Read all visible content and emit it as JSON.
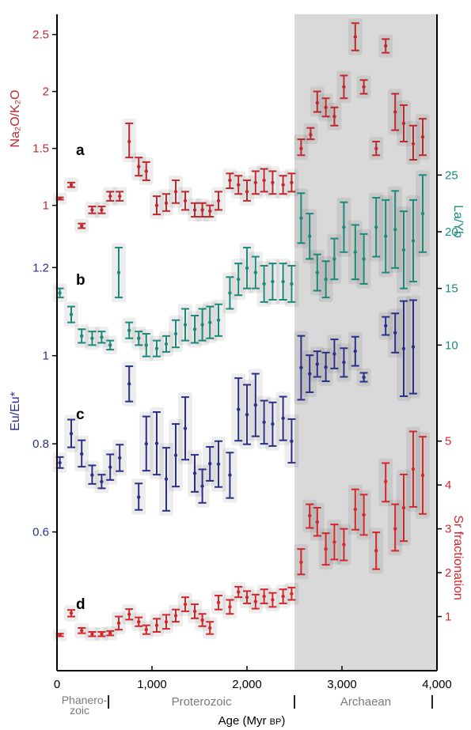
{
  "colors": {
    "na_k": "#c0282d",
    "la_yb": "#1b8a7a",
    "eu": "#2b2f8a",
    "sr": "#d6262b",
    "archaean_shade": "#d9d9d9",
    "eon_label": "#7a7a7a",
    "axis": "#000000"
  },
  "chart_data": [
    {
      "panel": "a",
      "type": "scatter",
      "series_name": "Na2O/K2O",
      "axis_label": "Na₂O/K₂O",
      "axis_side": "left",
      "ticks": [
        1,
        1.5,
        2,
        2.5
      ],
      "ylim": [
        0.56,
        2.56
      ],
      "points": [
        {
          "x": 30,
          "y": 1.06,
          "lo": 1.05,
          "hi": 1.07
        },
        {
          "x": 150,
          "y": 1.18,
          "lo": 1.16,
          "hi": 1.2
        },
        {
          "x": 260,
          "y": 0.82,
          "lo": 0.8,
          "hi": 0.84
        },
        {
          "x": 370,
          "y": 0.96,
          "lo": 0.93,
          "hi": 0.99
        },
        {
          "x": 470,
          "y": 0.96,
          "lo": 0.93,
          "hi": 0.99
        },
        {
          "x": 560,
          "y": 1.08,
          "lo": 1.04,
          "hi": 1.12
        },
        {
          "x": 660,
          "y": 1.08,
          "lo": 1.04,
          "hi": 1.12
        },
        {
          "x": 760,
          "y": 1.56,
          "lo": 1.42,
          "hi": 1.72
        },
        {
          "x": 860,
          "y": 1.34,
          "lo": 1.26,
          "hi": 1.42
        },
        {
          "x": 940,
          "y": 1.3,
          "lo": 1.22,
          "hi": 1.38
        },
        {
          "x": 1050,
          "y": 1.0,
          "lo": 0.92,
          "hi": 1.08
        },
        {
          "x": 1150,
          "y": 1.02,
          "lo": 0.95,
          "hi": 1.1
        },
        {
          "x": 1250,
          "y": 1.12,
          "lo": 1.02,
          "hi": 1.22
        },
        {
          "x": 1350,
          "y": 1.04,
          "lo": 0.96,
          "hi": 1.12
        },
        {
          "x": 1450,
          "y": 0.96,
          "lo": 0.9,
          "hi": 1.02
        },
        {
          "x": 1530,
          "y": 0.96,
          "lo": 0.9,
          "hi": 1.02
        },
        {
          "x": 1610,
          "y": 0.95,
          "lo": 0.9,
          "hi": 1.0
        },
        {
          "x": 1700,
          "y": 1.04,
          "lo": 0.96,
          "hi": 1.12
        },
        {
          "x": 1820,
          "y": 1.22,
          "lo": 1.15,
          "hi": 1.28
        },
        {
          "x": 1910,
          "y": 1.18,
          "lo": 1.1,
          "hi": 1.26
        },
        {
          "x": 2000,
          "y": 1.12,
          "lo": 1.04,
          "hi": 1.22
        },
        {
          "x": 2090,
          "y": 1.2,
          "lo": 1.1,
          "hi": 1.3
        },
        {
          "x": 2180,
          "y": 1.22,
          "lo": 1.12,
          "hi": 1.32
        },
        {
          "x": 2270,
          "y": 1.2,
          "lo": 1.1,
          "hi": 1.3
        },
        {
          "x": 2380,
          "y": 1.18,
          "lo": 1.1,
          "hi": 1.26
        },
        {
          "x": 2470,
          "y": 1.2,
          "lo": 1.12,
          "hi": 1.28
        },
        {
          "x": 2570,
          "y": 1.5,
          "lo": 1.44,
          "hi": 1.58
        },
        {
          "x": 2670,
          "y": 1.62,
          "lo": 1.58,
          "hi": 1.68
        },
        {
          "x": 2740,
          "y": 1.9,
          "lo": 1.82,
          "hi": 2.0
        },
        {
          "x": 2830,
          "y": 1.86,
          "lo": 1.78,
          "hi": 1.94
        },
        {
          "x": 2920,
          "y": 1.78,
          "lo": 1.7,
          "hi": 1.86
        },
        {
          "x": 3020,
          "y": 2.04,
          "lo": 1.94,
          "hi": 2.14
        },
        {
          "x": 3140,
          "y": 2.48,
          "lo": 2.36,
          "hi": 2.6
        },
        {
          "x": 3230,
          "y": 2.04,
          "lo": 1.98,
          "hi": 2.1
        },
        {
          "x": 3360,
          "y": 1.5,
          "lo": 1.44,
          "hi": 1.56
        },
        {
          "x": 3460,
          "y": 2.4,
          "lo": 2.34,
          "hi": 2.46
        },
        {
          "x": 3560,
          "y": 1.82,
          "lo": 1.66,
          "hi": 1.98
        },
        {
          "x": 3650,
          "y": 1.72,
          "lo": 1.56,
          "hi": 1.88
        },
        {
          "x": 3750,
          "y": 1.54,
          "lo": 1.4,
          "hi": 1.7
        },
        {
          "x": 3850,
          "y": 1.6,
          "lo": 1.44,
          "hi": 1.76
        }
      ]
    },
    {
      "panel": "b",
      "type": "scatter",
      "series_name": "La/Yb",
      "axis_label": "La/Yb",
      "axis_side": "right",
      "ticks": [
        10,
        15,
        20,
        25
      ],
      "ylim": [
        8,
        26
      ],
      "points": [
        {
          "x": 30,
          "y": 14.6,
          "lo": 14.2,
          "hi": 15.0
        },
        {
          "x": 150,
          "y": 12.7,
          "lo": 12.0,
          "hi": 13.4
        },
        {
          "x": 260,
          "y": 10.8,
          "lo": 10.2,
          "hi": 11.4
        },
        {
          "x": 370,
          "y": 10.6,
          "lo": 10.0,
          "hi": 11.2
        },
        {
          "x": 470,
          "y": 10.7,
          "lo": 10.2,
          "hi": 11.2
        },
        {
          "x": 560,
          "y": 10.0,
          "lo": 9.6,
          "hi": 10.4
        },
        {
          "x": 650,
          "y": 16.4,
          "lo": 14.2,
          "hi": 18.6
        },
        {
          "x": 760,
          "y": 11.3,
          "lo": 10.6,
          "hi": 12.0
        },
        {
          "x": 860,
          "y": 10.6,
          "lo": 10.0,
          "hi": 11.2
        },
        {
          "x": 940,
          "y": 10.0,
          "lo": 9.0,
          "hi": 11.0
        },
        {
          "x": 1050,
          "y": 9.7,
          "lo": 9.0,
          "hi": 10.4
        },
        {
          "x": 1150,
          "y": 10.1,
          "lo": 9.4,
          "hi": 10.8
        },
        {
          "x": 1250,
          "y": 11.0,
          "lo": 9.8,
          "hi": 12.2
        },
        {
          "x": 1350,
          "y": 11.8,
          "lo": 10.4,
          "hi": 13.2
        },
        {
          "x": 1450,
          "y": 11.4,
          "lo": 10.2,
          "hi": 12.6
        },
        {
          "x": 1530,
          "y": 11.8,
          "lo": 10.4,
          "hi": 13.2
        },
        {
          "x": 1610,
          "y": 12.0,
          "lo": 10.6,
          "hi": 13.4
        },
        {
          "x": 1700,
          "y": 12.2,
          "lo": 10.8,
          "hi": 13.6
        },
        {
          "x": 1820,
          "y": 14.6,
          "lo": 13.2,
          "hi": 16.0
        },
        {
          "x": 1910,
          "y": 15.8,
          "lo": 14.4,
          "hi": 17.2
        },
        {
          "x": 2000,
          "y": 16.8,
          "lo": 15.0,
          "hi": 18.6
        },
        {
          "x": 2090,
          "y": 16.4,
          "lo": 15.0,
          "hi": 17.8
        },
        {
          "x": 2180,
          "y": 15.4,
          "lo": 13.8,
          "hi": 17.0
        },
        {
          "x": 2270,
          "y": 15.6,
          "lo": 14.0,
          "hi": 17.2
        },
        {
          "x": 2380,
          "y": 15.6,
          "lo": 14.0,
          "hi": 17.2
        },
        {
          "x": 2470,
          "y": 15.4,
          "lo": 13.8,
          "hi": 17.0
        },
        {
          "x": 2570,
          "y": 21.2,
          "lo": 19.0,
          "hi": 23.4
        },
        {
          "x": 2660,
          "y": 19.6,
          "lo": 17.6,
          "hi": 21.6
        },
        {
          "x": 2740,
          "y": 16.4,
          "lo": 14.8,
          "hi": 18.0
        },
        {
          "x": 2830,
          "y": 15.8,
          "lo": 14.2,
          "hi": 17.4
        },
        {
          "x": 2920,
          "y": 17.6,
          "lo": 15.8,
          "hi": 19.4
        },
        {
          "x": 3020,
          "y": 20.4,
          "lo": 18.2,
          "hi": 22.6
        },
        {
          "x": 3140,
          "y": 18.2,
          "lo": 15.8,
          "hi": 20.6
        },
        {
          "x": 3230,
          "y": 17.6,
          "lo": 15.4,
          "hi": 19.8
        },
        {
          "x": 3360,
          "y": 20.4,
          "lo": 17.8,
          "hi": 23.0
        },
        {
          "x": 3460,
          "y": 19.6,
          "lo": 16.4,
          "hi": 22.8
        },
        {
          "x": 3560,
          "y": 20.2,
          "lo": 16.8,
          "hi": 23.6
        },
        {
          "x": 3650,
          "y": 18.4,
          "lo": 15.0,
          "hi": 21.8
        },
        {
          "x": 3750,
          "y": 19.2,
          "lo": 15.6,
          "hi": 22.8
        },
        {
          "x": 3850,
          "y": 21.6,
          "lo": 18.2,
          "hi": 25.0
        }
      ]
    },
    {
      "panel": "c",
      "type": "scatter",
      "series_name": "Eu/Eu*",
      "axis_label": "Eu/Eu*",
      "axis_side": "left",
      "ticks": [
        0.6,
        0.8,
        1,
        1.2
      ],
      "ylim": [
        0.54,
        1.24
      ],
      "points": [
        {
          "x": 30,
          "y": 0.757,
          "lo": 0.745,
          "hi": 0.77
        },
        {
          "x": 150,
          "y": 0.823,
          "lo": 0.792,
          "hi": 0.855
        },
        {
          "x": 260,
          "y": 0.777,
          "lo": 0.748,
          "hi": 0.808
        },
        {
          "x": 370,
          "y": 0.729,
          "lo": 0.709,
          "hi": 0.751
        },
        {
          "x": 470,
          "y": 0.714,
          "lo": 0.699,
          "hi": 0.73
        },
        {
          "x": 560,
          "y": 0.747,
          "lo": 0.718,
          "hi": 0.776
        },
        {
          "x": 660,
          "y": 0.768,
          "lo": 0.738,
          "hi": 0.798
        },
        {
          "x": 760,
          "y": 0.936,
          "lo": 0.896,
          "hi": 0.976
        },
        {
          "x": 860,
          "y": 0.679,
          "lo": 0.65,
          "hi": 0.71
        },
        {
          "x": 940,
          "y": 0.8,
          "lo": 0.739,
          "hi": 0.862
        },
        {
          "x": 1050,
          "y": 0.801,
          "lo": 0.73,
          "hi": 0.872
        },
        {
          "x": 1150,
          "y": 0.72,
          "lo": 0.648,
          "hi": 0.791
        },
        {
          "x": 1250,
          "y": 0.774,
          "lo": 0.703,
          "hi": 0.845
        },
        {
          "x": 1350,
          "y": 0.835,
          "lo": 0.764,
          "hi": 0.906
        },
        {
          "x": 1450,
          "y": 0.733,
          "lo": 0.691,
          "hi": 0.775
        },
        {
          "x": 1530,
          "y": 0.704,
          "lo": 0.666,
          "hi": 0.742
        },
        {
          "x": 1610,
          "y": 0.755,
          "lo": 0.716,
          "hi": 0.793
        },
        {
          "x": 1700,
          "y": 0.754,
          "lo": 0.702,
          "hi": 0.806
        },
        {
          "x": 1820,
          "y": 0.729,
          "lo": 0.677,
          "hi": 0.78
        },
        {
          "x": 1910,
          "y": 0.878,
          "lo": 0.807,
          "hi": 0.949
        },
        {
          "x": 2000,
          "y": 0.866,
          "lo": 0.799,
          "hi": 0.934
        },
        {
          "x": 2090,
          "y": 0.888,
          "lo": 0.817,
          "hi": 0.959
        },
        {
          "x": 2180,
          "y": 0.849,
          "lo": 0.8,
          "hi": 0.898
        },
        {
          "x": 2270,
          "y": 0.845,
          "lo": 0.795,
          "hi": 0.894
        },
        {
          "x": 2380,
          "y": 0.858,
          "lo": 0.808,
          "hi": 0.907
        },
        {
          "x": 2470,
          "y": 0.806,
          "lo": 0.757,
          "hi": 0.856
        },
        {
          "x": 2570,
          "y": 0.973,
          "lo": 0.9,
          "hi": 1.045
        },
        {
          "x": 2660,
          "y": 0.959,
          "lo": 0.917,
          "hi": 1.001
        },
        {
          "x": 2740,
          "y": 0.981,
          "lo": 0.952,
          "hi": 1.01
        },
        {
          "x": 2830,
          "y": 0.974,
          "lo": 0.942,
          "hi": 1.007
        },
        {
          "x": 2920,
          "y": 1.004,
          "lo": 0.971,
          "hi": 1.037
        },
        {
          "x": 3020,
          "y": 0.985,
          "lo": 0.952,
          "hi": 1.017
        },
        {
          "x": 3140,
          "y": 1.01,
          "lo": 0.977,
          "hi": 1.043
        },
        {
          "x": 3230,
          "y": 0.951,
          "lo": 0.941,
          "hi": 0.961
        },
        {
          "x": 3460,
          "y": 1.068,
          "lo": 1.047,
          "hi": 1.088
        },
        {
          "x": 3560,
          "y": 1.052,
          "lo": 1.007,
          "hi": 1.096
        },
        {
          "x": 3650,
          "y": 1.016,
          "lo": 0.908,
          "hi": 1.124
        },
        {
          "x": 3750,
          "y": 1.02,
          "lo": 0.914,
          "hi": 1.126
        }
      ]
    },
    {
      "panel": "d",
      "type": "scatter",
      "series_name": "Sr fractionation",
      "axis_label": "Sr fractionation",
      "axis_side": "right",
      "ticks": [
        1,
        2,
        3,
        4,
        5
      ],
      "ylim": [
        0,
        5.5
      ],
      "points": [
        {
          "x": 30,
          "y": 0.58,
          "lo": 0.55,
          "hi": 0.61
        },
        {
          "x": 150,
          "y": 1.08,
          "lo": 1.0,
          "hi": 1.15
        },
        {
          "x": 260,
          "y": 0.68,
          "lo": 0.62,
          "hi": 0.74
        },
        {
          "x": 370,
          "y": 0.6,
          "lo": 0.55,
          "hi": 0.65
        },
        {
          "x": 470,
          "y": 0.6,
          "lo": 0.55,
          "hi": 0.65
        },
        {
          "x": 560,
          "y": 0.62,
          "lo": 0.57,
          "hi": 0.67
        },
        {
          "x": 650,
          "y": 0.85,
          "lo": 0.7,
          "hi": 1.0
        },
        {
          "x": 760,
          "y": 1.05,
          "lo": 0.93,
          "hi": 1.17
        },
        {
          "x": 860,
          "y": 0.88,
          "lo": 0.78,
          "hi": 0.98
        },
        {
          "x": 940,
          "y": 0.7,
          "lo": 0.6,
          "hi": 0.8
        },
        {
          "x": 1050,
          "y": 0.8,
          "lo": 0.65,
          "hi": 0.95
        },
        {
          "x": 1150,
          "y": 0.88,
          "lo": 0.72,
          "hi": 1.04
        },
        {
          "x": 1250,
          "y": 1.02,
          "lo": 0.88,
          "hi": 1.16
        },
        {
          "x": 1350,
          "y": 1.28,
          "lo": 1.12,
          "hi": 1.44
        },
        {
          "x": 1450,
          "y": 1.12,
          "lo": 0.96,
          "hi": 1.28
        },
        {
          "x": 1530,
          "y": 0.92,
          "lo": 0.78,
          "hi": 1.06
        },
        {
          "x": 1610,
          "y": 0.74,
          "lo": 0.6,
          "hi": 0.88
        },
        {
          "x": 1700,
          "y": 1.32,
          "lo": 1.16,
          "hi": 1.48
        },
        {
          "x": 1820,
          "y": 1.22,
          "lo": 1.06,
          "hi": 1.38
        },
        {
          "x": 1910,
          "y": 1.56,
          "lo": 1.44,
          "hi": 1.68
        },
        {
          "x": 2000,
          "y": 1.44,
          "lo": 1.3,
          "hi": 1.58
        },
        {
          "x": 2090,
          "y": 1.34,
          "lo": 1.18,
          "hi": 1.5
        },
        {
          "x": 2180,
          "y": 1.46,
          "lo": 1.3,
          "hi": 1.62
        },
        {
          "x": 2270,
          "y": 1.38,
          "lo": 1.22,
          "hi": 1.54
        },
        {
          "x": 2380,
          "y": 1.46,
          "lo": 1.3,
          "hi": 1.62
        },
        {
          "x": 2470,
          "y": 1.52,
          "lo": 1.38,
          "hi": 1.66
        },
        {
          "x": 2570,
          "y": 2.24,
          "lo": 1.96,
          "hi": 2.54
        },
        {
          "x": 2660,
          "y": 3.3,
          "lo": 3.02,
          "hi": 3.56
        },
        {
          "x": 2740,
          "y": 3.16,
          "lo": 2.84,
          "hi": 3.48
        },
        {
          "x": 2830,
          "y": 2.54,
          "lo": 2.18,
          "hi": 2.9
        },
        {
          "x": 2920,
          "y": 2.7,
          "lo": 2.3,
          "hi": 3.1
        },
        {
          "x": 3020,
          "y": 2.64,
          "lo": 2.28,
          "hi": 3.0
        },
        {
          "x": 3140,
          "y": 3.44,
          "lo": 2.98,
          "hi": 3.9
        },
        {
          "x": 3230,
          "y": 3.32,
          "lo": 2.86,
          "hi": 3.78
        },
        {
          "x": 3360,
          "y": 2.5,
          "lo": 2.08,
          "hi": 2.92
        },
        {
          "x": 3460,
          "y": 4.08,
          "lo": 3.62,
          "hi": 4.5
        },
        {
          "x": 3560,
          "y": 3.0,
          "lo": 2.5,
          "hi": 3.56
        },
        {
          "x": 3650,
          "y": 3.48,
          "lo": 2.72,
          "hi": 4.24
        },
        {
          "x": 3750,
          "y": 4.36,
          "lo": 3.5,
          "hi": 5.22
        },
        {
          "x": 3850,
          "y": 4.22,
          "lo": 3.34,
          "hi": 5.1
        }
      ]
    }
  ],
  "x_axis": {
    "label_main": "Age (Myr ",
    "label_unit": "BP",
    "label_close": ")",
    "xlim": [
      0,
      4000
    ],
    "ticks": [
      0,
      1000,
      2000,
      3000,
      4000
    ],
    "tick_labels": [
      "0",
      "1,000",
      "2,000",
      "3,000",
      "4,000"
    ]
  },
  "shaded_region": {
    "label": "Archaean",
    "from": 2500,
    "to": 4000
  },
  "eons": [
    {
      "label_line1": "Phanero-",
      "label_line2": "zoic",
      "from": 0,
      "to": 542
    },
    {
      "label_line1": "Proterozoic",
      "label_line2": "",
      "from": 542,
      "to": 2500
    },
    {
      "label_line1": "Archaean",
      "label_line2": "",
      "from": 2500,
      "to": 4000
    }
  ],
  "eon_boundaries": [
    542,
    2500,
    3950
  ]
}
